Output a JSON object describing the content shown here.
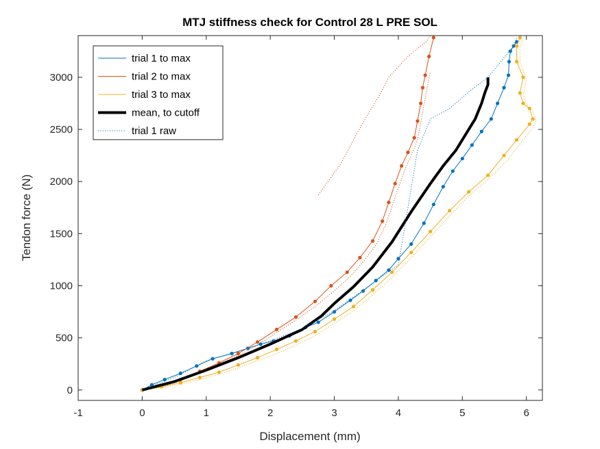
{
  "chart_data": {
    "type": "line",
    "title": "MTJ stiffness check for Control 28 L PRE SOL",
    "xlabel": "Displacement (mm)",
    "ylabel": "Tendon force (N)",
    "xlim": [
      -1,
      6.25
    ],
    "ylim": [
      -100,
      3400
    ],
    "xticks": [
      -1,
      0,
      1,
      2,
      3,
      4,
      5,
      6
    ],
    "yticks": [
      0,
      500,
      1000,
      1500,
      2000,
      2500,
      3000
    ],
    "xtick_labels": [
      "-1",
      "0",
      "1",
      "2",
      "3",
      "4",
      "5",
      "6"
    ],
    "ytick_labels": [
      "0",
      "500",
      "1000",
      "1500",
      "2000",
      "2500",
      "3000"
    ],
    "grid": false,
    "legend_position": "top-left",
    "colors": {
      "trial1": "#0072BD",
      "trial2": "#D95319",
      "trial3": "#EDB120",
      "mean": "#000000"
    },
    "series": [
      {
        "name": "trial 1 to max",
        "style": "solid-markers",
        "color": "#0072BD",
        "x": [
          0,
          0.15,
          0.35,
          0.6,
          0.85,
          1.1,
          1.4,
          1.65,
          1.85,
          2.05,
          2.3,
          2.55,
          2.75,
          3.0,
          3.25,
          3.45,
          3.65,
          3.85,
          4.0,
          4.2,
          4.4,
          4.55,
          4.7,
          4.85,
          5.0,
          5.15,
          5.3,
          5.45,
          5.55,
          5.65,
          5.72,
          5.73,
          5.75,
          5.8,
          5.85
        ],
        "y": [
          0,
          50,
          100,
          160,
          230,
          300,
          350,
          400,
          440,
          470,
          520,
          600,
          650,
          750,
          860,
          950,
          1050,
          1150,
          1260,
          1400,
          1600,
          1780,
          1950,
          2100,
          2220,
          2350,
          2480,
          2600,
          2750,
          2900,
          3020,
          3150,
          3250,
          3300,
          3340
        ]
      },
      {
        "name": "trial 2 to max",
        "style": "solid-markers",
        "color": "#D95319",
        "x": [
          0,
          0.3,
          0.6,
          0.9,
          1.2,
          1.5,
          1.8,
          2.1,
          2.4,
          2.7,
          2.95,
          3.2,
          3.4,
          3.6,
          3.75,
          3.85,
          3.95,
          4.05,
          4.15,
          4.25,
          4.3,
          4.35,
          4.38,
          4.42,
          4.48,
          4.55
        ],
        "y": [
          0,
          40,
          100,
          180,
          260,
          350,
          460,
          580,
          700,
          850,
          1000,
          1130,
          1270,
          1430,
          1620,
          1800,
          1980,
          2150,
          2280,
          2420,
          2580,
          2750,
          2900,
          3020,
          3200,
          3380
        ]
      },
      {
        "name": "trial 3 to max",
        "style": "solid-markers",
        "color": "#EDB120",
        "x": [
          0,
          0.3,
          0.6,
          0.9,
          1.2,
          1.5,
          1.8,
          2.1,
          2.4,
          2.7,
          3.0,
          3.3,
          3.6,
          3.9,
          4.2,
          4.5,
          4.8,
          5.1,
          5.4,
          5.65,
          5.85,
          6.05,
          6.1,
          6.05,
          5.95,
          5.9,
          5.95,
          5.85,
          5.85,
          5.9
        ],
        "y": [
          0,
          30,
          70,
          120,
          170,
          240,
          310,
          390,
          470,
          560,
          680,
          800,
          960,
          1130,
          1320,
          1520,
          1720,
          1900,
          2060,
          2250,
          2400,
          2550,
          2600,
          2700,
          2750,
          2850,
          3000,
          3150,
          3300,
          3380
        ]
      },
      {
        "name": "mean, to cutoff",
        "style": "thick-solid",
        "color": "#000000",
        "x": [
          0,
          0.5,
          1.0,
          1.5,
          2.0,
          2.5,
          2.8,
          3.0,
          3.3,
          3.6,
          3.9,
          4.2,
          4.5,
          4.7,
          4.9,
          5.05,
          5.2,
          5.3,
          5.35,
          5.4,
          5.4
        ],
        "y": [
          0,
          80,
          190,
          310,
          440,
          580,
          710,
          830,
          990,
          1180,
          1420,
          1710,
          1980,
          2150,
          2300,
          2450,
          2600,
          2750,
          2850,
          2930,
          3000
        ]
      },
      {
        "name": "trial 1 raw",
        "style": "dotted",
        "color": "#0072BD",
        "x": [
          0,
          0.5,
          1.0,
          1.5,
          2.0,
          2.5,
          3.0,
          3.5,
          4.0,
          4.3,
          4.5,
          4.8,
          5.1,
          5.4,
          5.6,
          5.8,
          5.85
        ],
        "y": [
          0,
          120,
          280,
          370,
          470,
          590,
          760,
          980,
          1200,
          2300,
          2600,
          2700,
          2860,
          3000,
          3150,
          3300,
          3380
        ]
      }
    ],
    "extra_lines": [
      {
        "color": "#D95319",
        "style": "dotted",
        "x": [
          0,
          0.3,
          0.6,
          0.9,
          1.2,
          1.5,
          1.8,
          2.1,
          2.4,
          2.7,
          3.0,
          3.25,
          3.45,
          3.65,
          3.8,
          3.9,
          4.0,
          4.1,
          4.2,
          4.3,
          4.35,
          4.4,
          4.45,
          4.5
        ],
        "y": [
          0,
          30,
          90,
          170,
          250,
          330,
          430,
          550,
          670,
          800,
          950,
          1090,
          1230,
          1390,
          1580,
          1760,
          1940,
          2110,
          2250,
          2400,
          2560,
          2730,
          2900,
          3050
        ]
      },
      {
        "color": "#D95319",
        "style": "dotted",
        "x": [
          2.75,
          2.9,
          3.1,
          3.3,
          3.5,
          3.7,
          3.85,
          4.0,
          4.15,
          4.25,
          4.35,
          4.45,
          4.5
        ],
        "y": [
          1870,
          2000,
          2170,
          2400,
          2620,
          2820,
          3000,
          3100,
          3200,
          3250,
          3300,
          3350,
          3400
        ]
      },
      {
        "color": "#EDB120",
        "style": "dotted",
        "x": [
          0,
          0.3,
          0.6,
          0.9,
          1.2,
          1.5,
          1.8,
          2.1,
          2.4,
          2.7,
          3.0,
          3.3,
          3.6,
          3.9,
          4.2,
          4.5,
          4.8,
          5.1,
          5.4,
          5.7,
          5.9,
          6.1,
          6.15,
          6.1,
          6.0,
          5.95,
          6.0,
          5.9,
          5.9,
          5.95
        ],
        "y": [
          0,
          20,
          55,
          100,
          150,
          210,
          280,
          350,
          430,
          520,
          640,
          760,
          910,
          1080,
          1270,
          1470,
          1670,
          1860,
          2020,
          2200,
          2360,
          2520,
          2580,
          2680,
          2740,
          2840,
          2990,
          3140,
          3290,
          3380
        ]
      }
    ]
  }
}
